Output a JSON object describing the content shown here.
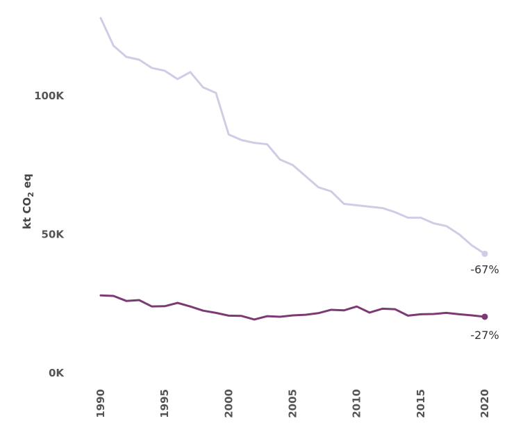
{
  "chart_data": {
    "type": "line",
    "title": "",
    "xlabel": "",
    "ylabel_prefix": "kt CO",
    "ylabel_subscript": "2",
    "ylabel_suffix": " eq",
    "ylim": [
      0,
      130000
    ],
    "xlim": [
      1990,
      2020
    ],
    "y_ticks": [
      {
        "value": 0,
        "label": "0K"
      },
      {
        "value": 50000,
        "label": "50K"
      },
      {
        "value": 100000,
        "label": "100K"
      }
    ],
    "x_ticks": [
      {
        "value": 1990,
        "label": "1990"
      },
      {
        "value": 1995,
        "label": "1995"
      },
      {
        "value": 2000,
        "label": "2000"
      },
      {
        "value": 2005,
        "label": "2005"
      },
      {
        "value": 2010,
        "label": "2010"
      },
      {
        "value": 2015,
        "label": "2015"
      },
      {
        "value": 2020,
        "label": "2020"
      }
    ],
    "grid": false,
    "legend": "none",
    "x": [
      1990,
      1991,
      1992,
      1993,
      1994,
      1995,
      1996,
      1997,
      1998,
      1999,
      2000,
      2001,
      2002,
      2003,
      2004,
      2005,
      2006,
      2007,
      2008,
      2009,
      2010,
      2011,
      2012,
      2013,
      2014,
      2015,
      2016,
      2017,
      2018,
      2019,
      2020
    ],
    "series": [
      {
        "color": "#cfcce6",
        "end_label": "-67%",
        "values": [
          128000,
          118000,
          114000,
          113000,
          110000,
          109000,
          106000,
          108500,
          103000,
          101000,
          86000,
          84000,
          83000,
          82500,
          77000,
          75000,
          71000,
          67000,
          65500,
          61000,
          60500,
          60000,
          59500,
          58000,
          56000,
          56000,
          54000,
          53000,
          50000,
          46000,
          43000
        ]
      },
      {
        "color": "#7b3a73",
        "end_label": "-27%",
        "values": [
          28000,
          27800,
          26000,
          26300,
          24000,
          24100,
          25300,
          24000,
          22500,
          21700,
          20700,
          20600,
          19300,
          20500,
          20300,
          20800,
          21000,
          21600,
          22800,
          22600,
          24000,
          21800,
          23200,
          23000,
          20700,
          21200,
          21300,
          21700,
          21200,
          20800,
          20300
        ]
      }
    ]
  }
}
